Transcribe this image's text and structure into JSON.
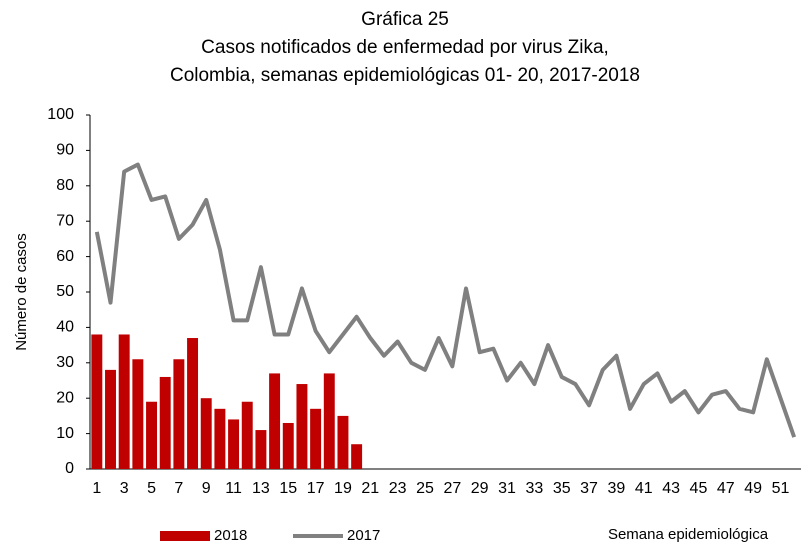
{
  "chart_data": {
    "type": "combo",
    "title": [
      "Gráfica 25",
      "Casos notificados de enfermedad por virus Zika,",
      "Colombia, semanas epidemiológicas 01- 20, 2017-2018"
    ],
    "x_label": "Semana epidemiológica",
    "y_label": "Número de casos",
    "categories": [
      "1",
      null,
      "3",
      null,
      "5",
      null,
      "7",
      null,
      "9",
      null,
      "11",
      null,
      "13",
      null,
      "15",
      null,
      "17",
      null,
      "19",
      null,
      "21",
      null,
      "23",
      null,
      "25",
      null,
      "27",
      null,
      "29",
      null,
      "31",
      null,
      "33",
      null,
      "35",
      null,
      "37",
      null,
      "39",
      null,
      "41",
      null,
      "43",
      null,
      "45",
      null,
      "47",
      null,
      "49",
      null,
      "51",
      null
    ],
    "series": [
      {
        "name": "2018",
        "type": "bar",
        "color": "#c00000",
        "values": [
          38,
          28,
          38,
          31,
          19,
          26,
          31,
          37,
          20,
          17,
          14,
          19,
          11,
          27,
          13,
          24,
          17,
          27,
          15,
          7,
          null,
          null,
          null,
          null,
          null,
          null,
          null,
          null,
          null,
          null,
          null,
          null,
          null,
          null,
          null,
          null,
          null,
          null,
          null,
          null,
          null,
          null,
          null,
          null,
          null,
          null,
          null,
          null,
          null,
          null,
          null,
          null
        ]
      },
      {
        "name": "2017",
        "type": "line",
        "color": "#808080",
        "values": [
          67,
          47,
          84,
          86,
          76,
          77,
          65,
          69,
          76,
          62,
          42,
          42,
          57,
          38,
          38,
          51,
          39,
          33,
          38,
          43,
          37,
          32,
          36,
          30,
          28,
          37,
          29,
          51,
          33,
          34,
          25,
          30,
          24,
          35,
          26,
          24,
          18,
          28,
          32,
          17,
          24,
          27,
          19,
          22,
          16,
          21,
          22,
          17,
          16,
          31,
          20,
          9
        ]
      }
    ],
    "ylim": [
      0,
      100
    ],
    "yticks": [
      0,
      10,
      20,
      30,
      40,
      50,
      60,
      70,
      80,
      90,
      100
    ],
    "grid": false
  }
}
